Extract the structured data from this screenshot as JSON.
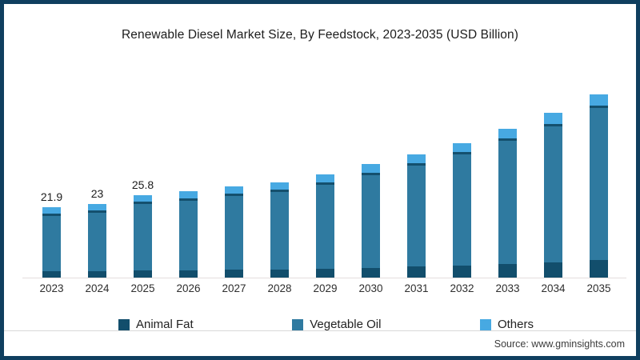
{
  "title": "Renewable Diesel Market Size, By Feedstock, 2023-2035 (USD Billion)",
  "source": "Source: www.gminsights.com",
  "colors": {
    "animal_fat": "#124e6c",
    "vegetable_oil": "#2f7aa0",
    "vegetable_oil_top_edge": "#14506e",
    "others": "#47a9e2",
    "frame_border": "#0f3f5f",
    "axis_line": "#e5dede"
  },
  "legend": [
    {
      "label": "Animal Fat",
      "color": "#124e6c"
    },
    {
      "label": "Vegetable Oil",
      "color": "#2f7aa0"
    },
    {
      "label": "Others",
      "color": "#47a9e2"
    }
  ],
  "chart_data": {
    "type": "bar",
    "stacked": true,
    "title": "Renewable Diesel Market Size, By Feedstock, 2023-2035 (USD Billion)",
    "unit": "USD Billion",
    "xlabel": "",
    "ylabel": "",
    "legend_position": "bottom",
    "grid": false,
    "categories": [
      "2023",
      "2024",
      "2025",
      "2026",
      "2027",
      "2028",
      "2029",
      "2030",
      "2031",
      "2032",
      "2033",
      "2034",
      "2035"
    ],
    "series": [
      {
        "name": "Animal Fat",
        "values": [
          1.9,
          2.0,
          2.2,
          2.3,
          2.5,
          2.6,
          2.8,
          3.1,
          3.4,
          3.7,
          4.3,
          4.8,
          5.5
        ]
      },
      {
        "name": "Vegetable Oil",
        "values": [
          18.2,
          19.1,
          21.5,
          22.5,
          23.7,
          24.8,
          27.0,
          29.7,
          32.4,
          35.5,
          39.2,
          43.3,
          48.3
        ]
      },
      {
        "name": "Others",
        "values": [
          1.8,
          1.9,
          2.1,
          2.2,
          2.3,
          2.3,
          2.5,
          2.6,
          2.7,
          2.8,
          2.9,
          3.3,
          3.4
        ]
      }
    ],
    "totals": [
      21.9,
      23.0,
      25.8,
      27.0,
      28.5,
      29.7,
      32.3,
      35.4,
      38.5,
      42.0,
      46.4,
      51.4,
      57.2
    ],
    "data_labels": [
      "21.9",
      "23",
      "25.8",
      "",
      "",
      "",
      "",
      "",
      "",
      "",
      "",
      "",
      ""
    ]
  }
}
